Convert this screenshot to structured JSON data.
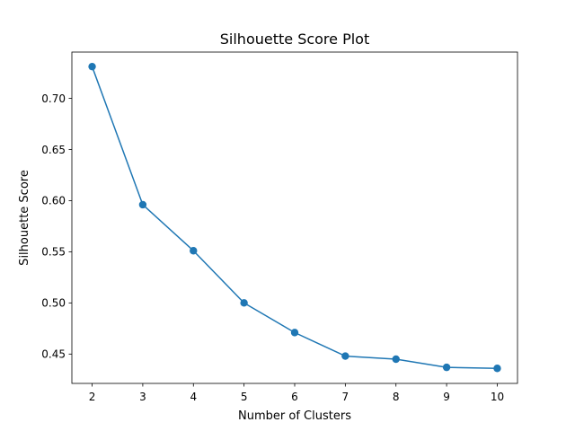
{
  "chart_data": {
    "type": "line",
    "title": "Silhouette Score Plot",
    "xlabel": "Number of Clusters",
    "ylabel": "Silhouette Score",
    "x": [
      2,
      3,
      4,
      5,
      6,
      7,
      8,
      9,
      10
    ],
    "series": [
      {
        "values": [
          0.731,
          0.596,
          0.551,
          0.5,
          0.471,
          0.448,
          0.445,
          0.437,
          0.436
        ],
        "color": "#1f77b4",
        "marker": "circle"
      }
    ],
    "xticks": [
      "2",
      "3",
      "4",
      "5",
      "6",
      "7",
      "8",
      "9",
      "10"
    ],
    "yticks": [
      "0.45",
      "0.50",
      "0.55",
      "0.60",
      "0.65",
      "0.70"
    ],
    "xlim": [
      1.6,
      10.4
    ],
    "ylim": [
      0.4213,
      0.7452
    ],
    "grid": false,
    "legend": "none"
  }
}
